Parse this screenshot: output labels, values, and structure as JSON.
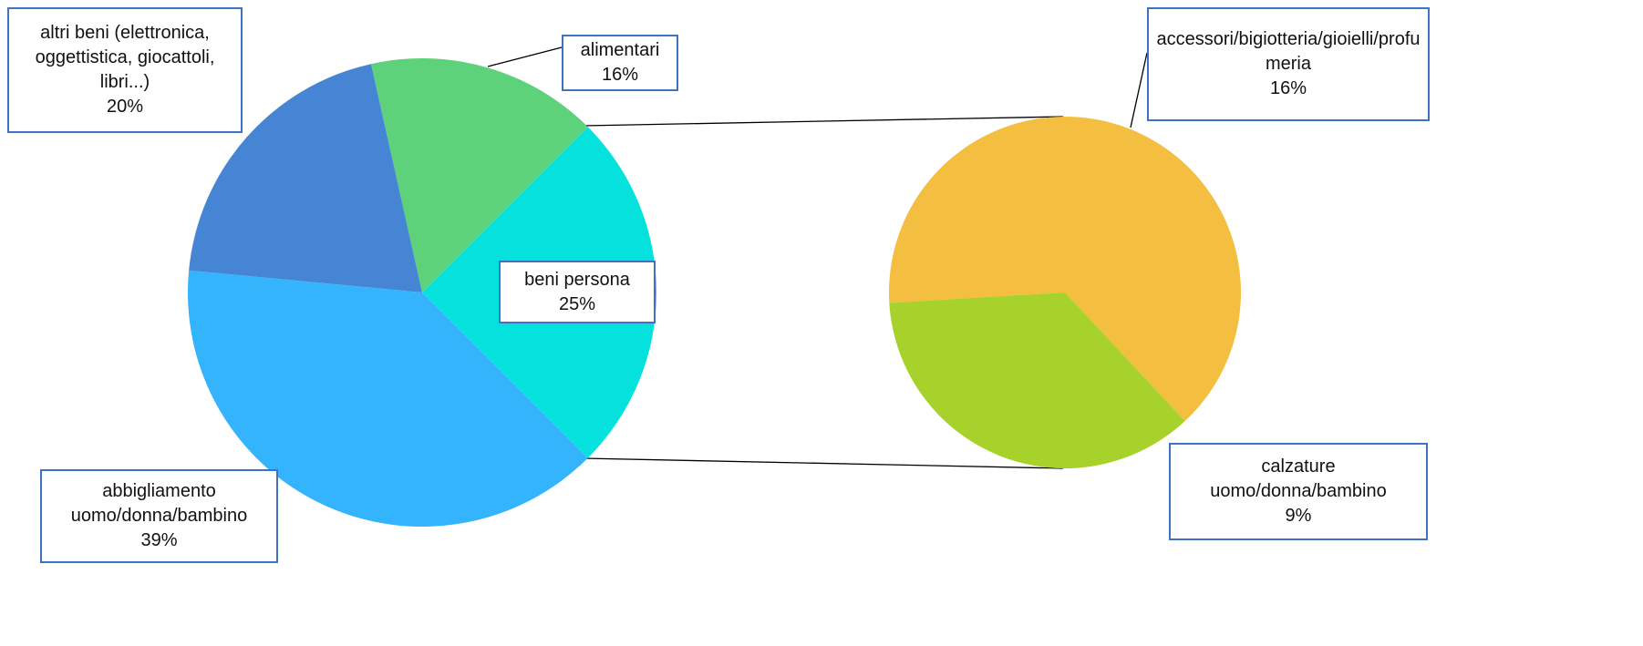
{
  "chart_data": {
    "type": "pie-of-pie",
    "categories": [
      "beni persona",
      "alimentari",
      "altri beni (elettronica, oggettistica, giocattoli, libri...)",
      "abbigliamento uomo/donna/bambino"
    ],
    "values": [
      25,
      16,
      20,
      39
    ],
    "value_labels": [
      "25%",
      "16%",
      "20%",
      "39%"
    ],
    "colors": [
      "#05e1dc",
      "#5ed27a",
      "#4684d4",
      "#33b4fc"
    ],
    "secondary": {
      "categories": [
        "accessori/bigiotteria/gioielli/profumeria",
        "calzature uomo/donna/bambino"
      ],
      "values": [
        16,
        9
      ],
      "value_labels": [
        "16%",
        "9%"
      ],
      "colors": [
        "#f4bf40",
        "#a6d22b"
      ]
    }
  }
}
